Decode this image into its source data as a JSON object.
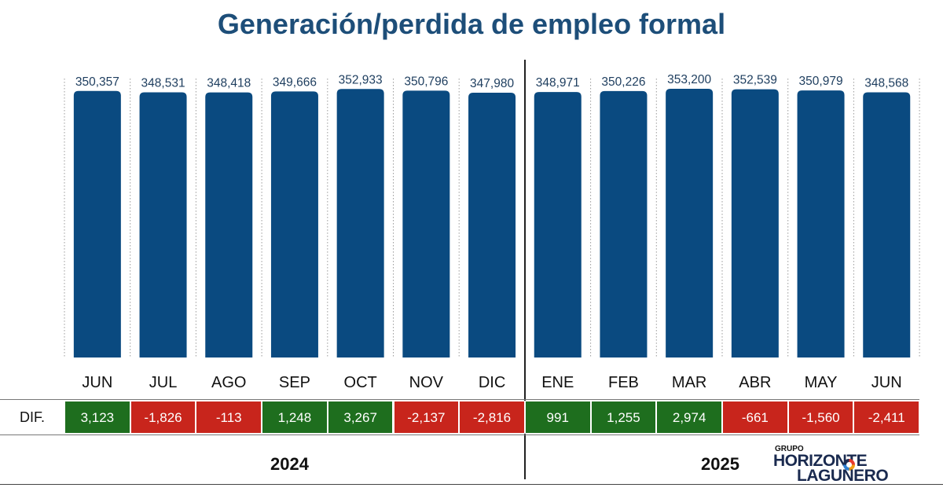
{
  "title": "Generación/perdida de empleo formal",
  "colors": {
    "bar": "#0a4a80",
    "positive": "#1e6e1e",
    "negative": "#c8251c",
    "title": "#1d4e79"
  },
  "dif_label": "DIF.",
  "years": {
    "y2024": "2024",
    "y2025": "2025"
  },
  "logo": {
    "grupo": "GRUPO",
    "line1": "HORIZONTE",
    "line2": "LAGUNERO"
  },
  "chart_data": {
    "type": "bar",
    "title": "Generación/perdida de empleo formal",
    "categories": [
      "JUN",
      "JUL",
      "AGO",
      "SEP",
      "OCT",
      "NOV",
      "DIC",
      "ENE",
      "FEB",
      "MAR",
      "ABR",
      "MAY",
      "JUN"
    ],
    "values": [
      350357,
      348531,
      348418,
      349666,
      352933,
      350796,
      347980,
      348971,
      350226,
      353200,
      352539,
      350979,
      348568
    ],
    "value_labels": [
      "350,357",
      "348,531",
      "348,418",
      "349,666",
      "352,933",
      "350,796",
      "347,980",
      "348,971",
      "350,226",
      "353,200",
      "352,539",
      "350,979",
      "348,568"
    ],
    "differences": [
      3123,
      -1826,
      -113,
      1248,
      3267,
      -2137,
      -2816,
      991,
      1255,
      2974,
      -661,
      -1560,
      -2411
    ],
    "difference_labels": [
      "3,123",
      "-1,826",
      "-113",
      "1,248",
      "3,267",
      "-2,137",
      "-2,816",
      "991",
      "1,255",
      "2,974",
      "-661",
      "-1,560",
      "-2,411"
    ],
    "year_groups": [
      {
        "year": "2024",
        "count": 7
      },
      {
        "year": "2025",
        "count": 6
      }
    ],
    "xlabel": "",
    "ylabel": "",
    "ylim": [
      0,
      353200
    ],
    "grid": false
  }
}
